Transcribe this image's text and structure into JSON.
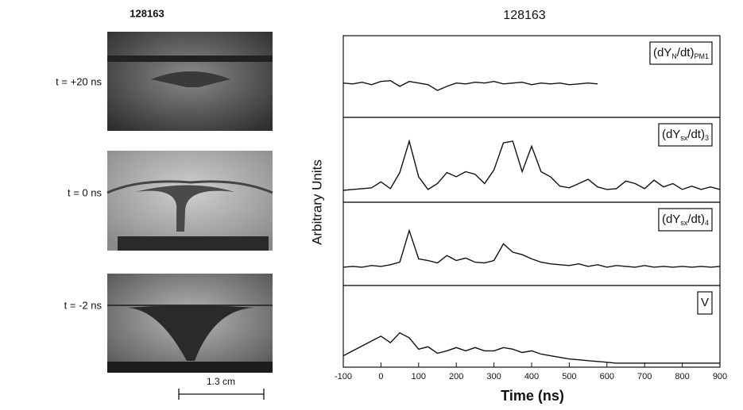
{
  "left": {
    "title": "128163",
    "frames": [
      {
        "label": "t = +20 ns"
      },
      {
        "label": "t = 0 ns"
      },
      {
        "label": "t = -2 ns"
      }
    ],
    "scale_bar": "1.3 cm"
  },
  "title": "128163",
  "xlabel": "Time (ns)",
  "ylabel": "Arbitrary Units",
  "chart_data": [
    {
      "type": "line",
      "label_parts": [
        "(dY",
        "N",
        "/dt)",
        "PM1"
      ],
      "xlim": [
        -100,
        900
      ],
      "ylim": [
        0,
        1
      ],
      "x": [
        -100,
        -75,
        -50,
        -25,
        0,
        25,
        50,
        75,
        100,
        125,
        150,
        175,
        200,
        225,
        250,
        275,
        300,
        325,
        350,
        375,
        400,
        425,
        450,
        475,
        500,
        525,
        550,
        575,
        600,
        625,
        650,
        675,
        700,
        725,
        750,
        775,
        800,
        825,
        850,
        875,
        900
      ],
      "series": [
        {
          "color": "#111111",
          "values": [
            0.42,
            0.41,
            0.43,
            0.4,
            0.44,
            0.45,
            0.38,
            0.44,
            0.42,
            0.4,
            0.33,
            0.38,
            0.42,
            0.41,
            0.43,
            0.42,
            0.44,
            0.41,
            0.42,
            0.43,
            0.4,
            0.42,
            0.41,
            0.42,
            0.4,
            0.41,
            0.42,
            0.41,
            null,
            null,
            null,
            null,
            null,
            null,
            null,
            null,
            null,
            null,
            null,
            null,
            null
          ]
        }
      ]
    },
    {
      "type": "line",
      "label_parts": [
        "(dY",
        "sx",
        "/dt)",
        "3"
      ],
      "xlim": [
        -100,
        900
      ],
      "ylim": [
        0,
        1
      ],
      "x": [
        -100,
        -75,
        -50,
        -25,
        0,
        25,
        50,
        75,
        100,
        125,
        150,
        175,
        200,
        225,
        250,
        275,
        300,
        325,
        350,
        375,
        400,
        425,
        450,
        475,
        500,
        525,
        550,
        575,
        600,
        625,
        650,
        675,
        700,
        725,
        750,
        775,
        800,
        825,
        850,
        875,
        900
      ],
      "series": [
        {
          "color": "#111111",
          "values": [
            0.14,
            0.15,
            0.16,
            0.17,
            0.24,
            0.16,
            0.35,
            0.72,
            0.3,
            0.15,
            0.22,
            0.35,
            0.3,
            0.36,
            0.33,
            0.22,
            0.38,
            0.7,
            0.72,
            0.36,
            0.66,
            0.36,
            0.3,
            0.19,
            0.17,
            0.22,
            0.27,
            0.18,
            0.15,
            0.16,
            0.25,
            0.22,
            0.16,
            0.26,
            0.18,
            0.22,
            0.15,
            0.19,
            0.15,
            0.18,
            0.15
          ]
        }
      ]
    },
    {
      "type": "line",
      "label_parts": [
        "(dY",
        "sx",
        "/dt)",
        "4"
      ],
      "xlim": [
        -100,
        900
      ],
      "ylim": [
        0,
        1
      ],
      "x": [
        -100,
        -75,
        -50,
        -25,
        0,
        25,
        50,
        75,
        100,
        125,
        150,
        175,
        200,
        225,
        250,
        275,
        300,
        325,
        350,
        375,
        400,
        425,
        450,
        475,
        500,
        525,
        550,
        575,
        600,
        625,
        650,
        675,
        700,
        725,
        750,
        775,
        800,
        825,
        850,
        875,
        900
      ],
      "series": [
        {
          "color": "#111111",
          "values": [
            0.22,
            0.23,
            0.22,
            0.24,
            0.23,
            0.25,
            0.28,
            0.66,
            0.32,
            0.3,
            0.27,
            0.36,
            0.3,
            0.33,
            0.28,
            0.27,
            0.3,
            0.5,
            0.4,
            0.37,
            0.32,
            0.28,
            0.26,
            0.25,
            0.24,
            0.26,
            0.23,
            0.25,
            0.22,
            0.24,
            0.23,
            0.22,
            0.24,
            0.22,
            0.23,
            0.22,
            0.23,
            0.22,
            0.23,
            0.22,
            0.23
          ]
        }
      ]
    },
    {
      "type": "line",
      "label_parts": [
        "V"
      ],
      "xlim": [
        -100,
        900
      ],
      "ylim": [
        0,
        1
      ],
      "xticks": [
        -100,
        0,
        100,
        200,
        300,
        400,
        500,
        600,
        700,
        800,
        900
      ],
      "x": [
        -100,
        -75,
        -50,
        -25,
        0,
        25,
        50,
        75,
        100,
        125,
        150,
        175,
        200,
        225,
        250,
        275,
        300,
        325,
        350,
        375,
        400,
        425,
        450,
        475,
        500,
        525,
        550,
        575,
        600,
        625,
        650,
        675,
        700,
        725,
        750,
        775,
        800,
        825,
        850,
        875,
        900
      ],
      "series": [
        {
          "color": "#111111",
          "values": [
            0.14,
            0.2,
            0.26,
            0.32,
            0.38,
            0.3,
            0.42,
            0.36,
            0.22,
            0.25,
            0.17,
            0.2,
            0.24,
            0.2,
            0.24,
            0.2,
            0.2,
            0.24,
            0.22,
            0.18,
            0.2,
            0.16,
            0.14,
            0.12,
            0.1,
            0.09,
            0.08,
            0.07,
            0.06,
            0.05,
            0.05,
            0.05,
            0.05,
            0.05,
            0.05,
            0.05,
            0.05,
            0.05,
            0.05,
            0.05,
            0.05
          ]
        }
      ]
    }
  ]
}
